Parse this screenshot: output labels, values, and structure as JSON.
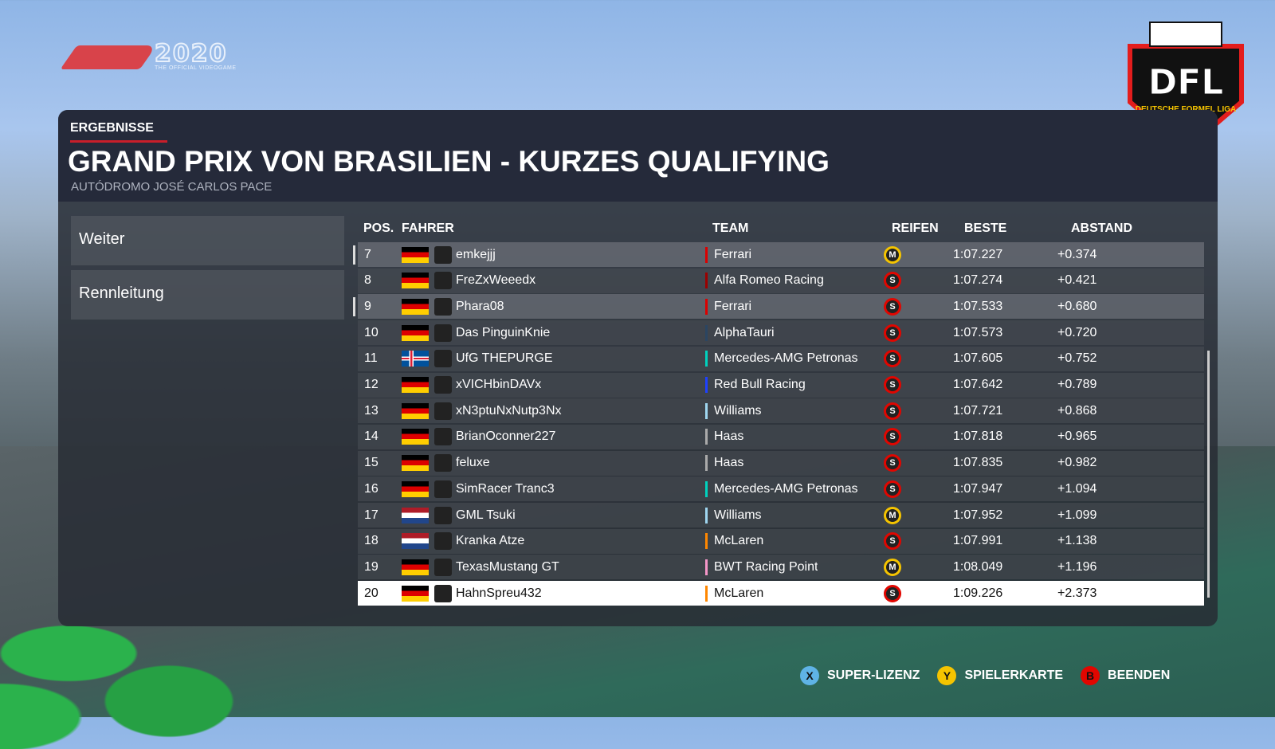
{
  "branding": {
    "game_year": "2020",
    "game_subtitle": "THE OFFICIAL VIDEOGAME",
    "league_abbr": "DFL",
    "league_name": "DEUTSCHE FORMEL LIGA"
  },
  "header": {
    "breadcrumb": "ERGEBNISSE",
    "title": "GRAND PRIX VON BRASILIEN - KURZES QUALIFYING",
    "subtitle": "AUTÓDROMO JOSÉ CARLOS PACE"
  },
  "menu": [
    {
      "label": "Weiter"
    },
    {
      "label": "Rennleitung"
    }
  ],
  "table": {
    "columns": [
      "POS.",
      "FAHRER",
      "TEAM",
      "REIFEN",
      "BESTE",
      "ABSTAND"
    ],
    "rows": [
      {
        "pos": "7",
        "flag": "germany",
        "driver": "emkejjj",
        "team": "Ferrari",
        "team_color": "#dc0000",
        "tyre": "M",
        "best": "1:07.227",
        "gap": "+0.374",
        "highlight": true
      },
      {
        "pos": "8",
        "flag": "germany",
        "driver": "FreZxWeeedx",
        "team": "Alfa Romeo Racing",
        "team_color": "#9b0000",
        "tyre": "S",
        "best": "1:07.274",
        "gap": "+0.421"
      },
      {
        "pos": "9",
        "flag": "germany",
        "driver": "Phara08",
        "team": "Ferrari",
        "team_color": "#dc0000",
        "tyre": "S",
        "best": "1:07.533",
        "gap": "+0.680",
        "highlight": true
      },
      {
        "pos": "10",
        "flag": "germany",
        "driver": "Das PinguinKnie",
        "team": "AlphaTauri",
        "team_color": "#2b4562",
        "tyre": "S",
        "best": "1:07.573",
        "gap": "+0.720"
      },
      {
        "pos": "11",
        "flag": "iceland",
        "driver": "UfG THEPURGE",
        "team": "Mercedes-AMG Petronas",
        "team_color": "#00d2be",
        "tyre": "S",
        "best": "1:07.605",
        "gap": "+0.752"
      },
      {
        "pos": "12",
        "flag": "germany",
        "driver": "xVICHbinDAVx",
        "team": "Red Bull Racing",
        "team_color": "#1e41ff",
        "tyre": "S",
        "best": "1:07.642",
        "gap": "+0.789"
      },
      {
        "pos": "13",
        "flag": "germany",
        "driver": "xN3ptuNxNutp3Nx",
        "team": "Williams",
        "team_color": "#9fd6f0",
        "tyre": "S",
        "best": "1:07.721",
        "gap": "+0.868"
      },
      {
        "pos": "14",
        "flag": "germany",
        "driver": "BrianOconner227",
        "team": "Haas",
        "team_color": "#aaaaaa",
        "tyre": "S",
        "best": "1:07.818",
        "gap": "+0.965"
      },
      {
        "pos": "15",
        "flag": "germany",
        "driver": "feluxe",
        "team": "Haas",
        "team_color": "#aaaaaa",
        "tyre": "S",
        "best": "1:07.835",
        "gap": "+0.982"
      },
      {
        "pos": "16",
        "flag": "germany",
        "driver": "SimRacer Tranc3",
        "team": "Mercedes-AMG Petronas",
        "team_color": "#00d2be",
        "tyre": "S",
        "best": "1:07.947",
        "gap": "+1.094"
      },
      {
        "pos": "17",
        "flag": "netherlands",
        "driver": "GML Tsuki",
        "team": "Williams",
        "team_color": "#9fd6f0",
        "tyre": "M",
        "best": "1:07.952",
        "gap": "+1.099"
      },
      {
        "pos": "18",
        "flag": "netherlands",
        "driver": "Kranka Atze",
        "team": "McLaren",
        "team_color": "#ff8700",
        "tyre": "S",
        "best": "1:07.991",
        "gap": "+1.138"
      },
      {
        "pos": "19",
        "flag": "germany",
        "driver": "TexasMustang GT",
        "team": "BWT Racing Point",
        "team_color": "#f596c8",
        "tyre": "M",
        "best": "1:08.049",
        "gap": "+1.196"
      },
      {
        "pos": "20",
        "flag": "germany",
        "driver": "HahnSpreu432",
        "team": "McLaren",
        "team_color": "#ff8700",
        "tyre": "S",
        "best": "1:09.226",
        "gap": "+2.373",
        "selected": true
      }
    ]
  },
  "tyre_colors": {
    "S": "#e10600",
    "M": "#f5c400"
  },
  "footer": [
    {
      "key": "X",
      "label": "SUPER-LIZENZ",
      "color": "#5fb3e6"
    },
    {
      "key": "Y",
      "label": "SPIELERKARTE",
      "color": "#f5c400"
    },
    {
      "key": "B",
      "label": "BEENDEN",
      "color": "#e10600"
    }
  ]
}
